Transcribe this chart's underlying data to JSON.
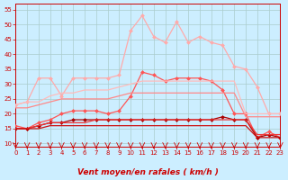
{
  "xlabel": "Vent moyen/en rafales ( km/h )",
  "bg_color": "#cceeff",
  "grid_color": "#aacccc",
  "x": [
    0,
    1,
    2,
    3,
    4,
    5,
    6,
    7,
    8,
    9,
    10,
    11,
    12,
    13,
    14,
    15,
    16,
    17,
    18,
    19,
    20,
    21,
    22,
    23
  ],
  "lines": [
    {
      "color": "#ffaaaa",
      "marker": "D",
      "markersize": 2.0,
      "linewidth": 0.9,
      "values": [
        23,
        24,
        32,
        32,
        26,
        32,
        32,
        32,
        32,
        33,
        48,
        53,
        46,
        44,
        51,
        44,
        46,
        44,
        43,
        36,
        35,
        29,
        20,
        20
      ]
    },
    {
      "color": "#ff5555",
      "marker": "D",
      "markersize": 2.0,
      "linewidth": 0.9,
      "values": [
        16,
        15,
        17,
        18,
        20,
        21,
        21,
        21,
        20,
        21,
        26,
        34,
        33,
        31,
        32,
        32,
        32,
        31,
        28,
        20,
        20,
        12,
        14,
        12
      ]
    },
    {
      "color": "#aa0000",
      "marker": "D",
      "markersize": 2.0,
      "linewidth": 0.9,
      "values": [
        15,
        15,
        16,
        17,
        17,
        18,
        18,
        18,
        18,
        18,
        18,
        18,
        18,
        18,
        18,
        18,
        18,
        18,
        19,
        18,
        18,
        12,
        13,
        12
      ]
    },
    {
      "color": "#ffbbbb",
      "marker": null,
      "linewidth": 0.9,
      "values": [
        23,
        24,
        24,
        26,
        27,
        27,
        28,
        28,
        28,
        29,
        30,
        31,
        31,
        31,
        31,
        31,
        31,
        31,
        31,
        31,
        20,
        20,
        20,
        20
      ]
    },
    {
      "color": "#ff8888",
      "marker": null,
      "linewidth": 0.9,
      "values": [
        22,
        22,
        23,
        24,
        25,
        25,
        25,
        25,
        25,
        26,
        27,
        27,
        27,
        27,
        27,
        27,
        27,
        27,
        27,
        27,
        19,
        19,
        19,
        19
      ]
    },
    {
      "color": "#ee3333",
      "marker": null,
      "linewidth": 0.9,
      "values": [
        15,
        15,
        16,
        17,
        17,
        17,
        17,
        18,
        18,
        18,
        18,
        18,
        18,
        18,
        18,
        18,
        18,
        18,
        18,
        18,
        18,
        13,
        13,
        13
      ]
    },
    {
      "color": "#cc1111",
      "marker": null,
      "linewidth": 0.9,
      "values": [
        15,
        15,
        15,
        16,
        16,
        16,
        16,
        16,
        16,
        16,
        16,
        16,
        16,
        16,
        16,
        16,
        16,
        16,
        16,
        16,
        16,
        12,
        12,
        12
      ]
    }
  ],
  "ylim": [
    9,
    57
  ],
  "yticks": [
    10,
    15,
    20,
    25,
    30,
    35,
    40,
    45,
    50,
    55
  ],
  "xlim": [
    0,
    23
  ],
  "tick_fontsize": 5.0,
  "label_fontsize": 6.5
}
